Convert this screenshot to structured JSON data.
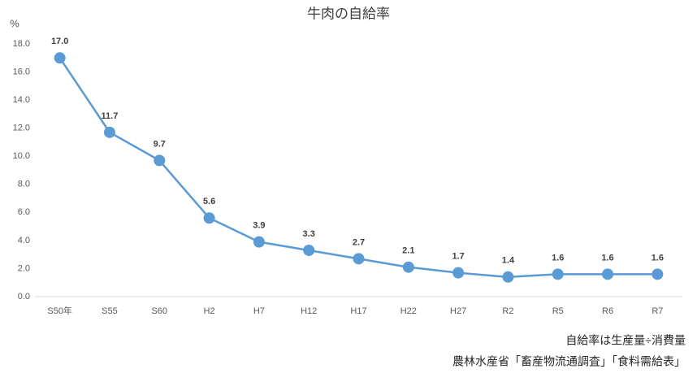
{
  "chart_data": {
    "type": "line",
    "title": "牛肉の自給率",
    "y_label": "%",
    "categories": [
      "S50年",
      "S55",
      "S60",
      "H2",
      "H7",
      "H12",
      "H17",
      "H22",
      "H27",
      "R2",
      "R5",
      "R6",
      "R7"
    ],
    "values": [
      17.0,
      11.7,
      9.7,
      5.6,
      3.9,
      3.3,
      2.7,
      2.1,
      1.7,
      1.4,
      1.6,
      1.6,
      1.6
    ],
    "value_labels": [
      "17.0",
      "11.7",
      "9.7",
      "5.6",
      "3.9",
      "3.3",
      "2.7",
      "2.1",
      "1.7",
      "1.4",
      "1.6",
      "1.6",
      "1.6"
    ],
    "color": "#5b9bd5",
    "ylim": [
      0,
      18
    ],
    "yticks": [
      {
        "value": 0,
        "label": "0.0"
      },
      {
        "value": 2,
        "label": "2.0"
      },
      {
        "value": 4,
        "label": "4.0"
      },
      {
        "value": 6,
        "label": "6.0"
      },
      {
        "value": 8,
        "label": "8.0"
      },
      {
        "value": 10,
        "label": "10.0"
      },
      {
        "value": 12,
        "label": "12.0"
      },
      {
        "value": 14,
        "label": "14.0"
      },
      {
        "value": 16,
        "label": "16.0"
      },
      {
        "value": 18,
        "label": "18.0"
      }
    ],
    "notes": [
      "自給率は生産量÷消費量",
      "農林水産省「畜産物流通調査」「食料需給表」"
    ]
  }
}
